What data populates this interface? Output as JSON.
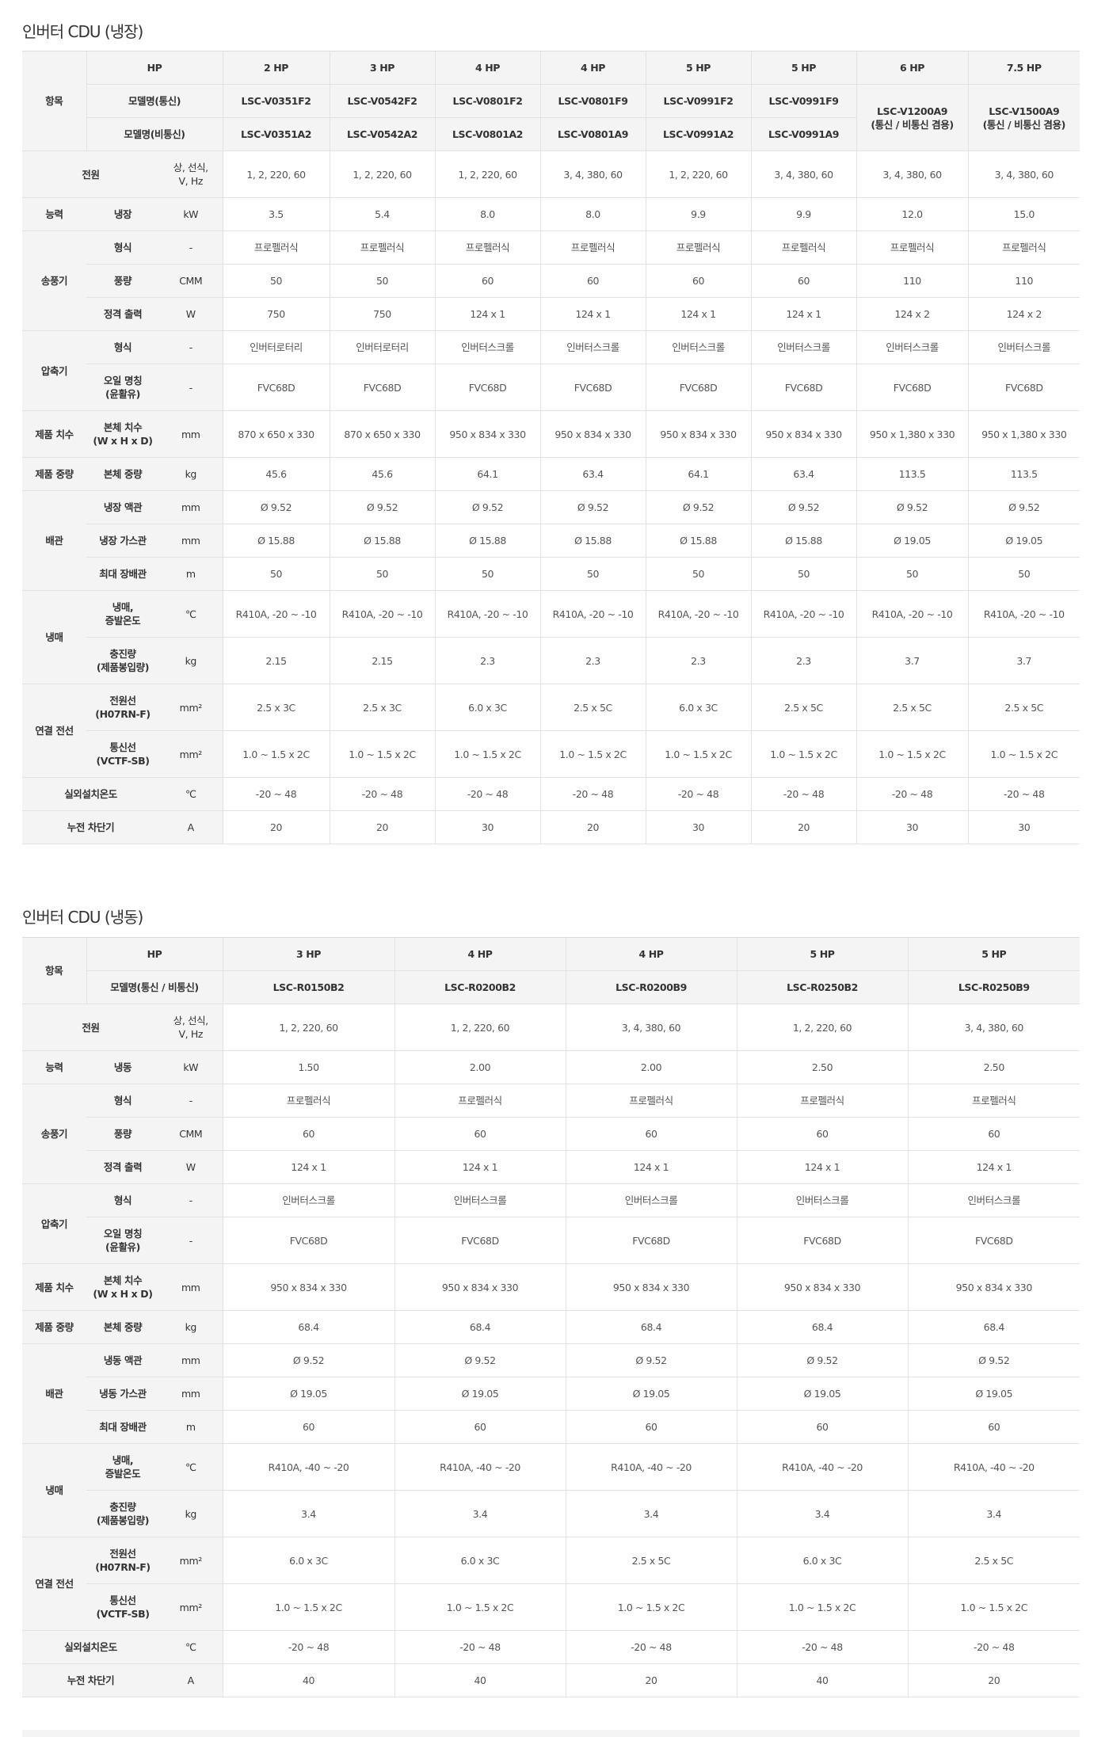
{
  "tables": [
    {
      "title": "인버터 CDU (냉장)",
      "item_label": "항목",
      "hp_label": "HP",
      "model_labels": [
        "모델명(통신)",
        "모델명(비통신)"
      ],
      "hp": [
        "2 HP",
        "3 HP",
        "4 HP",
        "4 HP",
        "5 HP",
        "5 HP",
        "6 HP",
        "7.5 HP"
      ],
      "models": [
        {
          "comm": "LSC-V0351F2",
          "noncomm": "LSC-V0351A2"
        },
        {
          "comm": "LSC-V0542F2",
          "noncomm": "LSC-V0542A2"
        },
        {
          "comm": "LSC-V0801F2",
          "noncomm": "LSC-V0801A2"
        },
        {
          "comm": "LSC-V0801F9",
          "noncomm": "LSC-V0801A9"
        },
        {
          "comm": "LSC-V0991F2",
          "noncomm": "LSC-V0991A2"
        },
        {
          "comm": "LSC-V0991F9",
          "noncomm": "LSC-V0991A9"
        },
        {
          "both": "LSC-V1200A9\n(통신 / 비통신 겸용)"
        },
        {
          "both": "LSC-V1500A9\n(통신 / 비통신 겸용)"
        }
      ],
      "sections": [
        {
          "label": "전원",
          "unit": "상, 선식,\nV, Hz",
          "values": [
            "1, 2, 220, 60",
            "1, 2, 220, 60",
            "1, 2, 220, 60",
            "3, 4, 380, 60",
            "1, 2, 220, 60",
            "3, 4, 380, 60",
            "3, 4, 380, 60",
            "3, 4, 380, 60"
          ]
        },
        {
          "label": "능력",
          "items": [
            {
              "label": "냉장",
              "unit": "kW",
              "values": [
                "3.5",
                "5.4",
                "8.0",
                "8.0",
                "9.9",
                "9.9",
                "12.0",
                "15.0"
              ]
            }
          ]
        },
        {
          "label": "송풍기",
          "items": [
            {
              "label": "형식",
              "unit": "-",
              "values": [
                "프로펠러식",
                "프로펠러식",
                "프로펠러식",
                "프로펠러식",
                "프로펠러식",
                "프로펠러식",
                "프로펠러식",
                "프로펠러식"
              ]
            },
            {
              "label": "풍량",
              "unit": "CMM",
              "values": [
                "50",
                "50",
                "60",
                "60",
                "60",
                "60",
                "110",
                "110"
              ]
            },
            {
              "label": "정격 출력",
              "unit": "W",
              "values": [
                "750",
                "750",
                "124 x 1",
                "124 x 1",
                "124 x 1",
                "124 x 1",
                "124 x 2",
                "124 x 2"
              ]
            }
          ]
        },
        {
          "label": "압축기",
          "items": [
            {
              "label": "형식",
              "unit": "-",
              "values": [
                "인버터로터리",
                "인버터로터리",
                "인버터스크롤",
                "인버터스크롤",
                "인버터스크롤",
                "인버터스크롤",
                "인버터스크롤",
                "인버터스크롤"
              ]
            },
            {
              "label": "오일 명칭\n(윤활유)",
              "unit": "-",
              "values": [
                "FVC68D",
                "FVC68D",
                "FVC68D",
                "FVC68D",
                "FVC68D",
                "FVC68D",
                "FVC68D",
                "FVC68D"
              ]
            }
          ]
        },
        {
          "label": "제품 치수",
          "items": [
            {
              "label": "본체 치수\n(W x H x D)",
              "unit": "mm",
              "values": [
                "870 x 650 x 330",
                "870 x 650 x 330",
                "950 x 834 x 330",
                "950 x 834 x 330",
                "950 x 834 x 330",
                "950 x 834 x 330",
                "950 x 1,380 x 330",
                "950 x 1,380 x 330"
              ]
            }
          ]
        },
        {
          "label": "제품 중량",
          "items": [
            {
              "label": "본체 중량",
              "unit": "kg",
              "values": [
                "45.6",
                "45.6",
                "64.1",
                "63.4",
                "64.1",
                "63.4",
                "113.5",
                "113.5"
              ]
            }
          ]
        },
        {
          "label": "배관",
          "items": [
            {
              "label": "냉장 액관",
              "unit": "mm",
              "values": [
                "Ø 9.52",
                "Ø 9.52",
                "Ø 9.52",
                "Ø 9.52",
                "Ø 9.52",
                "Ø 9.52",
                "Ø 9.52",
                "Ø 9.52"
              ]
            },
            {
              "label": "냉장 가스관",
              "unit": "mm",
              "values": [
                "Ø 15.88",
                "Ø 15.88",
                "Ø 15.88",
                "Ø 15.88",
                "Ø 15.88",
                "Ø 15.88",
                "Ø 19.05",
                "Ø 19.05"
              ]
            },
            {
              "label": "최대 장배관",
              "unit": "m",
              "values": [
                "50",
                "50",
                "50",
                "50",
                "50",
                "50",
                "50",
                "50"
              ]
            }
          ]
        },
        {
          "label": "냉매",
          "items": [
            {
              "label": "냉매,\n증발온도",
              "unit": "℃",
              "values": [
                "R410A, -20 ~ -10",
                "R410A, -20 ~ -10",
                "R410A, -20 ~ -10",
                "R410A, -20 ~ -10",
                "R410A, -20 ~ -10",
                "R410A, -20 ~ -10",
                "R410A, -20 ~ -10",
                "R410A, -20 ~ -10"
              ]
            },
            {
              "label": "충진량\n(제품봉입량)",
              "unit": "kg",
              "values": [
                "2.15",
                "2.15",
                "2.3",
                "2.3",
                "2.3",
                "2.3",
                "3.7",
                "3.7"
              ]
            }
          ]
        },
        {
          "label": "연결 전선",
          "items": [
            {
              "label": "전원선\n(H07RN-F)",
              "unit": "mm²",
              "values": [
                "2.5 x 3C",
                "2.5 x 3C",
                "6.0 x 3C",
                "2.5 x 5C",
                "6.0 x 3C",
                "2.5 x 5C",
                "2.5 x 5C",
                "2.5 x 5C"
              ]
            },
            {
              "label": "통신선\n(VCTF-SB)",
              "unit": "mm²",
              "values": [
                "1.0 ~ 1.5 x 2C",
                "1.0 ~ 1.5 x 2C",
                "1.0 ~ 1.5 x 2C",
                "1.0 ~ 1.5 x 2C",
                "1.0 ~ 1.5 x 2C",
                "1.0 ~ 1.5 x 2C",
                "1.0 ~ 1.5 x 2C",
                "1.0 ~ 1.5 x 2C"
              ]
            }
          ]
        },
        {
          "label": "실외설치온도",
          "unit": "℃",
          "values": [
            "-20 ~ 48",
            "-20 ~ 48",
            "-20 ~ 48",
            "-20 ~ 48",
            "-20 ~ 48",
            "-20 ~ 48",
            "-20 ~ 48",
            "-20 ~ 48"
          ]
        },
        {
          "label": "누전 차단기",
          "unit": "A",
          "values": [
            "20",
            "20",
            "30",
            "20",
            "30",
            "20",
            "30",
            "30"
          ]
        }
      ]
    },
    {
      "title": "인버터 CDU (냉동)",
      "item_label": "항목",
      "hp_label": "HP",
      "model_labels": [
        "모델명(통신 / 비통신)"
      ],
      "hp": [
        "3 HP",
        "4 HP",
        "4 HP",
        "5 HP",
        "5 HP"
      ],
      "models": [
        {
          "comm": "LSC-R0150B2"
        },
        {
          "comm": "LSC-R0200B2"
        },
        {
          "comm": "LSC-R0200B9"
        },
        {
          "comm": "LSC-R0250B2"
        },
        {
          "comm": "LSC-R0250B9"
        }
      ],
      "sections": [
        {
          "label": "전원",
          "unit": "상, 선식,\nV, Hz",
          "values": [
            "1, 2, 220, 60",
            "1, 2, 220, 60",
            "3, 4, 380, 60",
            "1, 2, 220, 60",
            "3, 4, 380, 60"
          ]
        },
        {
          "label": "능력",
          "items": [
            {
              "label": "냉동",
              "unit": "kW",
              "values": [
                "1.50",
                "2.00",
                "2.00",
                "2.50",
                "2.50"
              ]
            }
          ]
        },
        {
          "label": "송풍기",
          "items": [
            {
              "label": "형식",
              "unit": "-",
              "values": [
                "프로펠러식",
                "프로펠러식",
                "프로펠러식",
                "프로펠러식",
                "프로펠러식"
              ]
            },
            {
              "label": "풍량",
              "unit": "CMM",
              "values": [
                "60",
                "60",
                "60",
                "60",
                "60"
              ]
            },
            {
              "label": "정격 출력",
              "unit": "W",
              "values": [
                "124 x 1",
                "124 x 1",
                "124 x 1",
                "124 x 1",
                "124 x 1"
              ]
            }
          ]
        },
        {
          "label": "압축기",
          "items": [
            {
              "label": "형식",
              "unit": "-",
              "values": [
                "인버터스크롤",
                "인버터스크롤",
                "인버터스크롤",
                "인버터스크롤",
                "인버터스크롤"
              ]
            },
            {
              "label": "오일 명칭\n(윤활유)",
              "unit": "-",
              "values": [
                "FVC68D",
                "FVC68D",
                "FVC68D",
                "FVC68D",
                "FVC68D"
              ]
            }
          ]
        },
        {
          "label": "제품 치수",
          "items": [
            {
              "label": "본체 치수\n(W x H x D)",
              "unit": "mm",
              "values": [
                "950 x 834 x 330",
                "950 x 834 x 330",
                "950 x 834 x 330",
                "950 x 834 x 330",
                "950 x 834 x 330"
              ]
            }
          ]
        },
        {
          "label": "제품 중량",
          "items": [
            {
              "label": "본체 중량",
              "unit": "kg",
              "values": [
                "68.4",
                "68.4",
                "68.4",
                "68.4",
                "68.4"
              ]
            }
          ]
        },
        {
          "label": "배관",
          "items": [
            {
              "label": "냉동 액관",
              "unit": "mm",
              "values": [
                "Ø 9.52",
                "Ø 9.52",
                "Ø 9.52",
                "Ø 9.52",
                "Ø 9.52"
              ]
            },
            {
              "label": "냉동 가스관",
              "unit": "mm",
              "values": [
                "Ø 19.05",
                "Ø 19.05",
                "Ø 19.05",
                "Ø 19.05",
                "Ø 19.05"
              ]
            },
            {
              "label": "최대 장배관",
              "unit": "m",
              "values": [
                "60",
                "60",
                "60",
                "60",
                "60"
              ]
            }
          ]
        },
        {
          "label": "냉매",
          "items": [
            {
              "label": "냉매,\n증발온도",
              "unit": "℃",
              "values": [
                "R410A, -40 ~ -20",
                "R410A, -40 ~ -20",
                "R410A, -40 ~ -20",
                "R410A, -40 ~ -20",
                "R410A, -40 ~ -20"
              ]
            },
            {
              "label": "충진량\n(제품봉입량)",
              "unit": "kg",
              "values": [
                "3.4",
                "3.4",
                "3.4",
                "3.4",
                "3.4"
              ]
            }
          ]
        },
        {
          "label": "연결 전선",
          "items": [
            {
              "label": "전원선\n(H07RN-F)",
              "unit": "mm²",
              "values": [
                "6.0 x 3C",
                "6.0 x 3C",
                "2.5 x 5C",
                "6.0 x 3C",
                "2.5 x 5C"
              ]
            },
            {
              "label": "통신선\n(VCTF-SB)",
              "unit": "mm²",
              "values": [
                "1.0 ~ 1.5 x 2C",
                "1.0 ~ 1.5 x 2C",
                "1.0 ~ 1.5 x 2C",
                "1.0 ~ 1.5 x 2C",
                "1.0 ~ 1.5 x 2C"
              ]
            }
          ]
        },
        {
          "label": "실외설치온도",
          "unit": "℃",
          "values": [
            "-20 ~ 48",
            "-20 ~ 48",
            "-20 ~ 48",
            "-20 ~ 48",
            "-20 ~ 48"
          ]
        },
        {
          "label": "누전 차단기",
          "unit": "A",
          "values": [
            "40",
            "40",
            "20",
            "40",
            "20"
          ]
        }
      ]
    }
  ]
}
